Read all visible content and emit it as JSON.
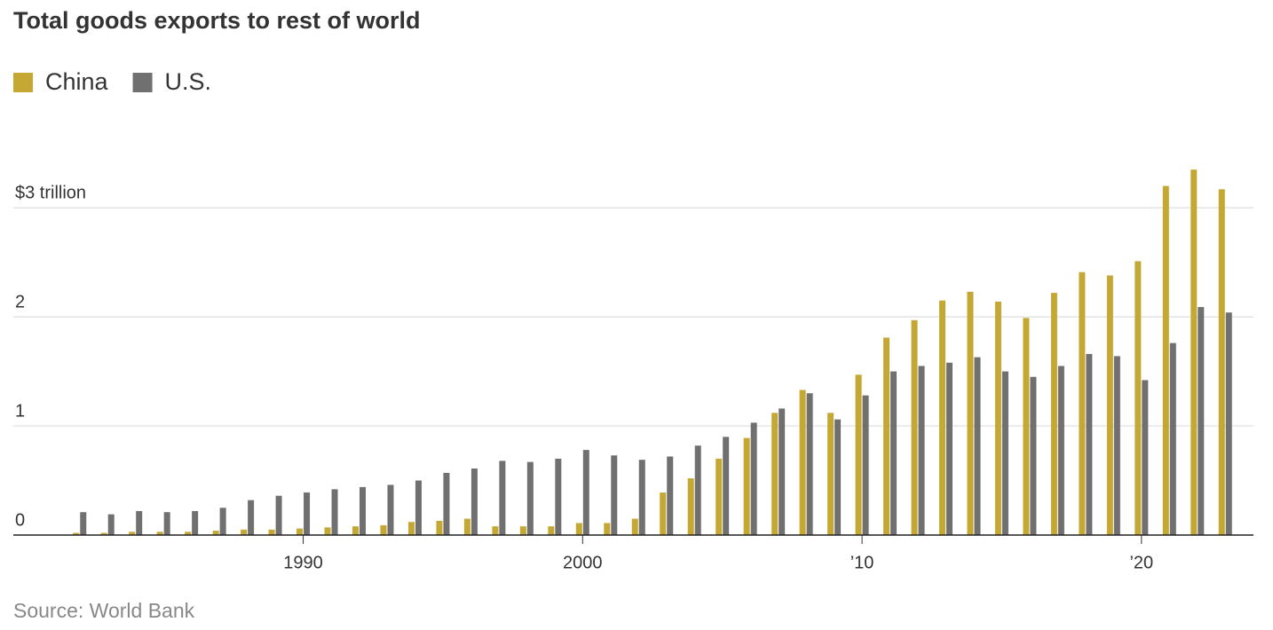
{
  "chart_data": {
    "type": "bar",
    "title": "Total goods exports to rest of world",
    "source": "Source: World Bank",
    "categories": [
      null,
      null,
      null,
      null,
      null,
      null,
      null,
      null,
      "1990",
      null,
      null,
      null,
      null,
      null,
      null,
      null,
      null,
      null,
      "2000",
      null,
      null,
      null,
      null,
      null,
      null,
      null,
      null,
      null,
      "’10",
      null,
      null,
      null,
      null,
      null,
      null,
      null,
      null,
      null,
      "’20",
      null,
      null,
      null
    ],
    "series": [
      {
        "name": "China",
        "color": "#c4a833",
        "values": [
          0.02,
          0.02,
          0.03,
          0.03,
          0.03,
          0.04,
          0.05,
          0.05,
          0.06,
          0.07,
          0.08,
          0.09,
          0.12,
          0.13,
          0.15,
          0.08,
          0.08,
          0.08,
          0.11,
          0.11,
          0.15,
          0.39,
          0.52,
          0.7,
          0.89,
          1.12,
          1.33,
          1.12,
          1.47,
          1.81,
          1.97,
          2.15,
          2.23,
          2.14,
          1.99,
          2.22,
          2.41,
          2.38,
          2.51,
          3.2,
          3.35,
          3.17
        ]
      },
      {
        "name": "U.S.",
        "color": "#707070",
        "values": [
          0.21,
          0.19,
          0.22,
          0.21,
          0.22,
          0.25,
          0.32,
          0.36,
          0.39,
          0.42,
          0.44,
          0.46,
          0.5,
          0.57,
          0.61,
          0.68,
          0.67,
          0.7,
          0.78,
          0.73,
          0.69,
          0.72,
          0.82,
          0.9,
          1.03,
          1.16,
          1.3,
          1.06,
          1.28,
          1.5,
          1.55,
          1.58,
          1.63,
          1.5,
          1.45,
          1.55,
          1.66,
          1.64,
          1.42,
          1.76,
          2.09,
          2.04
        ]
      }
    ],
    "ylim": [
      0,
      3.4
    ],
    "yticks": [
      0,
      1,
      2,
      {
        "value": 3,
        "label": "$3 trillion"
      }
    ],
    "grid": true
  }
}
